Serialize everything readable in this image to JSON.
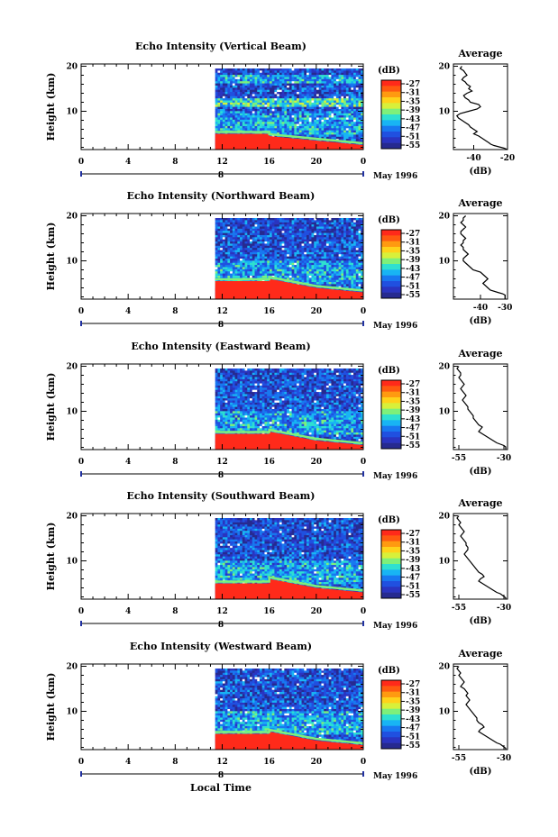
{
  "figure": {
    "xlabel": "Local Time"
  },
  "colorbar": {
    "unit": "(dB)",
    "ticks": [
      "-27",
      "-31",
      "-35",
      "-39",
      "-43",
      "-47",
      "-51",
      "-55"
    ],
    "colors": [
      "#ff2a1a",
      "#ff5a10",
      "#ff9a10",
      "#ffd21a",
      "#d8f03a",
      "#7ef07a",
      "#2ee0d0",
      "#18b4f4",
      "#1878f0",
      "#2050e0",
      "#2a34c0",
      "#262a90"
    ]
  },
  "colors": {
    "background": "#ffffff",
    "axis": "#000000",
    "date_line": "#2030a0",
    "plot_background_gap": "#ffffff"
  },
  "chart_data": [
    {
      "type": "heatmap",
      "title": "Echo Intensity (Vertical Beam)",
      "ylabel": "Height (km)",
      "xlabel": "",
      "x_ticks": [
        "0",
        "4",
        "8",
        "12",
        "16",
        "20",
        "0"
      ],
      "x_range": [
        0,
        24
      ],
      "y_ticks": [
        "20",
        "10"
      ],
      "y_range": [
        1.5,
        20.5
      ],
      "date_ticks": [
        "8"
      ],
      "date_label": "May 1996",
      "data_start_hour": 11.4,
      "surface_clutter": [
        {
          "hour": 11.4,
          "km": 5.0
        },
        {
          "hour": 16.0,
          "km": 5.0
        },
        {
          "hour": 16.0,
          "km": 4.5
        },
        {
          "hour": 20.0,
          "km": 3.5
        },
        {
          "hour": 24.0,
          "km": 2.5
        }
      ],
      "avg_profile": {
        "title": "Average",
        "xlabel": "(dB)",
        "x_ticks": [
          "-40",
          "-20"
        ],
        "x_range": [
          -52,
          -20
        ],
        "y_ticks": [
          "20",
          "10"
        ],
        "dB": [
          -47,
          -48,
          -46,
          -45,
          -44,
          -46,
          -47,
          -45,
          -44,
          -42,
          -43,
          -41,
          -44,
          -46,
          -45,
          -43,
          -42,
          -37,
          -36,
          -38,
          -43,
          -48,
          -50,
          -49,
          -47,
          -45,
          -43,
          -42,
          -40,
          -38,
          -40,
          -37,
          -35,
          -33,
          -31,
          -30,
          -28,
          -25,
          -22,
          -20
        ],
        "km": [
          20,
          19.5,
          19,
          18.5,
          18,
          17.5,
          17,
          16.5,
          16,
          15.5,
          15,
          14.5,
          14,
          13.5,
          13,
          12.5,
          12,
          11.5,
          11,
          10.5,
          10,
          9.5,
          9,
          8.5,
          8,
          7.5,
          7,
          6.5,
          6,
          5.5,
          5,
          4.5,
          4,
          3.5,
          3,
          2.7,
          2.4,
          2.1,
          1.8,
          1.5
        ]
      }
    },
    {
      "type": "heatmap",
      "title": "Echo Intensity (Northward Beam)",
      "ylabel": "Height (km)",
      "xlabel": "",
      "x_ticks": [
        "0",
        "4",
        "8",
        "12",
        "16",
        "20",
        "0"
      ],
      "x_range": [
        0,
        24
      ],
      "y_ticks": [
        "20",
        "10"
      ],
      "y_range": [
        1.5,
        20.5
      ],
      "date_ticks": [
        "8"
      ],
      "date_label": "May 1996",
      "data_start_hour": 11.4,
      "surface_clutter": [
        {
          "hour": 11.4,
          "km": 5.5
        },
        {
          "hour": 16.0,
          "km": 5.5
        },
        {
          "hour": 16.0,
          "km": 6.0
        },
        {
          "hour": 20.0,
          "km": 4.0
        },
        {
          "hour": 24.0,
          "km": 3.0
        }
      ],
      "avg_profile": {
        "title": "Average",
        "xlabel": "(dB)",
        "x_ticks": [
          "-40",
          "-30"
        ],
        "x_range": [
          -51,
          -29
        ],
        "y_ticks": [
          "20",
          "10"
        ],
        "dB": [
          -46,
          -47,
          -47,
          -48,
          -47,
          -46,
          -47,
          -48,
          -48,
          -47,
          -46,
          -47,
          -47,
          -48,
          -47,
          -47,
          -46,
          -45,
          -46,
          -47,
          -47,
          -46,
          -45,
          -44,
          -43,
          -40,
          -39,
          -38,
          -37,
          -38,
          -39,
          -38,
          -37,
          -36,
          -33,
          -31,
          -30,
          -30,
          -30,
          -30
        ],
        "km": [
          20,
          19.5,
          19,
          18.5,
          18,
          17.5,
          17,
          16.5,
          16,
          15.5,
          15,
          14.5,
          14,
          13.5,
          13,
          12.5,
          12,
          11.5,
          11,
          10.5,
          10,
          9.5,
          9,
          8.5,
          8,
          7.5,
          7,
          6.5,
          6,
          5.5,
          5,
          4.5,
          4,
          3.5,
          3,
          2.7,
          2.4,
          2.1,
          1.8,
          1.5
        ]
      }
    },
    {
      "type": "heatmap",
      "title": "Echo Intensity (Eastward Beam)",
      "ylabel": "Height (km)",
      "xlabel": "",
      "x_ticks": [
        "0",
        "4",
        "8",
        "12",
        "16",
        "20",
        "0"
      ],
      "x_range": [
        0,
        24
      ],
      "y_ticks": [
        "20",
        "10"
      ],
      "y_range": [
        1.5,
        20.5
      ],
      "date_ticks": [
        "8"
      ],
      "date_label": "May 1996",
      "data_start_hour": 11.4,
      "surface_clutter": [
        {
          "hour": 11.4,
          "km": 5.0
        },
        {
          "hour": 16.0,
          "km": 5.0
        },
        {
          "hour": 16.0,
          "km": 5.5
        },
        {
          "hour": 20.0,
          "km": 3.5
        },
        {
          "hour": 24.0,
          "km": 2.5
        }
      ],
      "avg_profile": {
        "title": "Average",
        "xlabel": "(dB)",
        "x_ticks": [
          "-55",
          "-30"
        ],
        "x_range": [
          -58,
          -28
        ],
        "y_ticks": [
          "20",
          "10"
        ],
        "dB": [
          -55,
          -56,
          -55,
          -54,
          -54,
          -55,
          -54,
          -53,
          -52,
          -53,
          -54,
          -53,
          -52,
          -51,
          -52,
          -53,
          -52,
          -51,
          -50,
          -50,
          -49,
          -48,
          -47,
          -47,
          -46,
          -45,
          -44,
          -42,
          -43,
          -44,
          -42,
          -40,
          -38,
          -36,
          -34,
          -32,
          -30,
          -29,
          -29,
          -29
        ],
        "km": [
          20,
          19.5,
          19,
          18.5,
          18,
          17.5,
          17,
          16.5,
          16,
          15.5,
          15,
          14.5,
          14,
          13.5,
          13,
          12.5,
          12,
          11.5,
          11,
          10.5,
          10,
          9.5,
          9,
          8.5,
          8,
          7.5,
          7,
          6.5,
          6,
          5.5,
          5,
          4.5,
          4,
          3.5,
          3,
          2.7,
          2.4,
          2.1,
          1.8,
          1.5
        ]
      }
    },
    {
      "type": "heatmap",
      "title": "Echo Intensity (Southward Beam)",
      "ylabel": "Height (km)",
      "xlabel": "",
      "x_ticks": [
        "0",
        "4",
        "8",
        "12",
        "16",
        "20",
        "0"
      ],
      "x_range": [
        0,
        24
      ],
      "y_ticks": [
        "20",
        "10"
      ],
      "y_range": [
        1.5,
        20.5
      ],
      "date_ticks": [
        "8"
      ],
      "date_label": "May 1996",
      "data_start_hour": 11.4,
      "surface_clutter": [
        {
          "hour": 11.4,
          "km": 5.0
        },
        {
          "hour": 16.0,
          "km": 5.0
        },
        {
          "hour": 16.0,
          "km": 6.0
        },
        {
          "hour": 20.0,
          "km": 4.0
        },
        {
          "hour": 24.0,
          "km": 3.0
        }
      ],
      "avg_profile": {
        "title": "Average",
        "xlabel": "(dB)",
        "x_ticks": [
          "-55",
          "-30"
        ],
        "x_range": [
          -58,
          -28
        ],
        "y_ticks": [
          "20",
          "10"
        ],
        "dB": [
          -55,
          -56,
          -55,
          -54,
          -55,
          -54,
          -53,
          -52,
          -53,
          -54,
          -53,
          -52,
          -51,
          -51,
          -50,
          -50,
          -51,
          -52,
          -51,
          -50,
          -49,
          -48,
          -47,
          -46,
          -45,
          -44,
          -42,
          -41,
          -43,
          -44,
          -42,
          -40,
          -38,
          -36,
          -34,
          -32,
          -31,
          -30,
          -29,
          -29
        ],
        "km": [
          20,
          19.5,
          19,
          18.5,
          18,
          17.5,
          17,
          16.5,
          16,
          15.5,
          15,
          14.5,
          14,
          13.5,
          13,
          12.5,
          12,
          11.5,
          11,
          10.5,
          10,
          9.5,
          9,
          8.5,
          8,
          7.5,
          7,
          6.5,
          6,
          5.5,
          5,
          4.5,
          4,
          3.5,
          3,
          2.7,
          2.4,
          2.1,
          1.8,
          1.5
        ]
      }
    },
    {
      "type": "heatmap",
      "title": "Echo Intensity (Westward Beam)",
      "ylabel": "Height (km)",
      "xlabel": "",
      "x_ticks": [
        "0",
        "4",
        "8",
        "12",
        "16",
        "20",
        "0"
      ],
      "x_range": [
        0,
        24
      ],
      "y_ticks": [
        "20",
        "10"
      ],
      "y_range": [
        1.5,
        20.5
      ],
      "date_ticks": [
        "8"
      ],
      "date_label": "May 1996",
      "data_start_hour": 11.4,
      "surface_clutter": [
        {
          "hour": 11.4,
          "km": 5.0
        },
        {
          "hour": 16.0,
          "km": 5.0
        },
        {
          "hour": 16.0,
          "km": 5.5
        },
        {
          "hour": 20.0,
          "km": 3.5
        },
        {
          "hour": 24.0,
          "km": 2.5
        }
      ],
      "avg_profile": {
        "title": "Average",
        "xlabel": "(dB)",
        "x_ticks": [
          "-55",
          "-30"
        ],
        "x_range": [
          -58,
          -28
        ],
        "y_ticks": [
          "20",
          "10"
        ],
        "dB": [
          -55,
          -56,
          -55,
          -54,
          -55,
          -54,
          -53,
          -52,
          -53,
          -54,
          -52,
          -51,
          -50,
          -51,
          -50,
          -49,
          -50,
          -51,
          -50,
          -49,
          -48,
          -47,
          -46,
          -45,
          -45,
          -44,
          -42,
          -41,
          -43,
          -44,
          -42,
          -40,
          -38,
          -36,
          -34,
          -32,
          -31,
          -30,
          -29,
          -29
        ],
        "km": [
          20,
          19.5,
          19,
          18.5,
          18,
          17.5,
          17,
          16.5,
          16,
          15.5,
          15,
          14.5,
          14,
          13.5,
          13,
          12.5,
          12,
          11.5,
          11,
          10.5,
          10,
          9.5,
          9,
          8.5,
          8,
          7.5,
          7,
          6.5,
          6,
          5.5,
          5,
          4.5,
          4,
          3.5,
          3,
          2.7,
          2.4,
          2.1,
          1.8,
          1.5
        ]
      }
    }
  ]
}
